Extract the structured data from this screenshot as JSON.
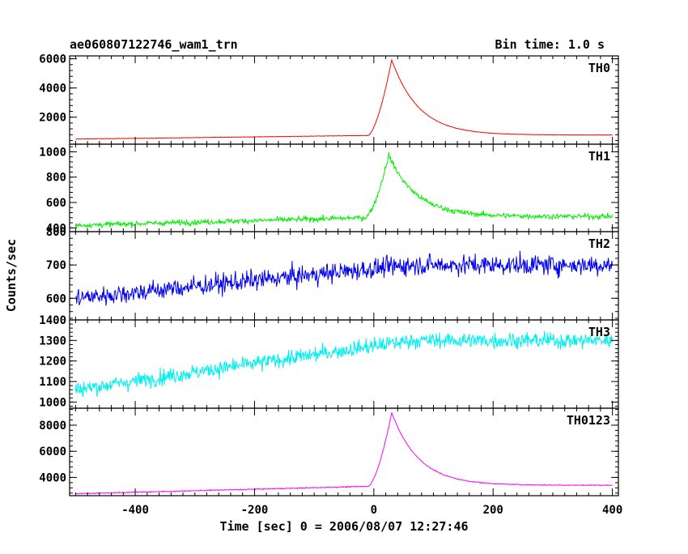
{
  "header": {
    "left_title": "ae060807122746_wam1_trn",
    "right_title": "Bin time: 1.0 s"
  },
  "chart_data": {
    "type": "line",
    "title": "ae060807122746_wam1_trn",
    "subtitle": "Bin time: 1.0 s",
    "xlabel": "Time [sec] 0 = 2006/08/07 12:27:46",
    "ylabel": "Counts/sec",
    "xlim": [
      -510,
      410
    ],
    "x_ticks": [
      -400,
      -200,
      0,
      200,
      400
    ],
    "x_step": 1.0,
    "grid": false,
    "panels": [
      {
        "name": "TH0",
        "color": "#ff0000",
        "ylim": [
          150,
          6200
        ],
        "y_ticks": [
          2000,
          4000,
          6000
        ],
        "baseline_start": 500,
        "baseline_end": 780,
        "peak": 5950,
        "peak_time": 30,
        "rise_start": -10,
        "late_level": 760,
        "noise": 18
      },
      {
        "name": "TH1",
        "color": "#00ee00",
        "ylim": [
          370,
          1060
        ],
        "y_ticks": [
          400,
          600,
          800,
          1000
        ],
        "baseline_start": 420,
        "baseline_end": 490,
        "peak": 980,
        "peak_time": 25,
        "rise_start": -15,
        "late_level": 500,
        "noise": 25
      },
      {
        "name": "TH2",
        "color": "#0000ee",
        "ylim": [
          535,
          800
        ],
        "y_ticks": [
          600,
          700,
          800
        ],
        "baseline_start": 600,
        "baseline_end": 700,
        "peak": 700,
        "peak_time": 30,
        "rise_start": 0,
        "late_level": 700,
        "noise": 35
      },
      {
        "name": "TH3",
        "color": "#00f0f0",
        "ylim": [
          970,
          1400
        ],
        "y_ticks": [
          1000,
          1100,
          1200,
          1300,
          1400
        ],
        "baseline_start": 1060,
        "baseline_end": 1300,
        "peak": 1300,
        "peak_time": 30,
        "rise_start": 0,
        "late_level": 1300,
        "noise": 45
      },
      {
        "name": "TH0123",
        "color": "#ff00ff",
        "ylim": [
          2600,
          9300
        ],
        "y_ticks": [
          4000,
          6000,
          8000
        ],
        "baseline_start": 2750,
        "baseline_end": 3400,
        "peak": 9000,
        "peak_time": 30,
        "rise_start": -10,
        "late_level": 3300,
        "noise": 45
      }
    ]
  }
}
